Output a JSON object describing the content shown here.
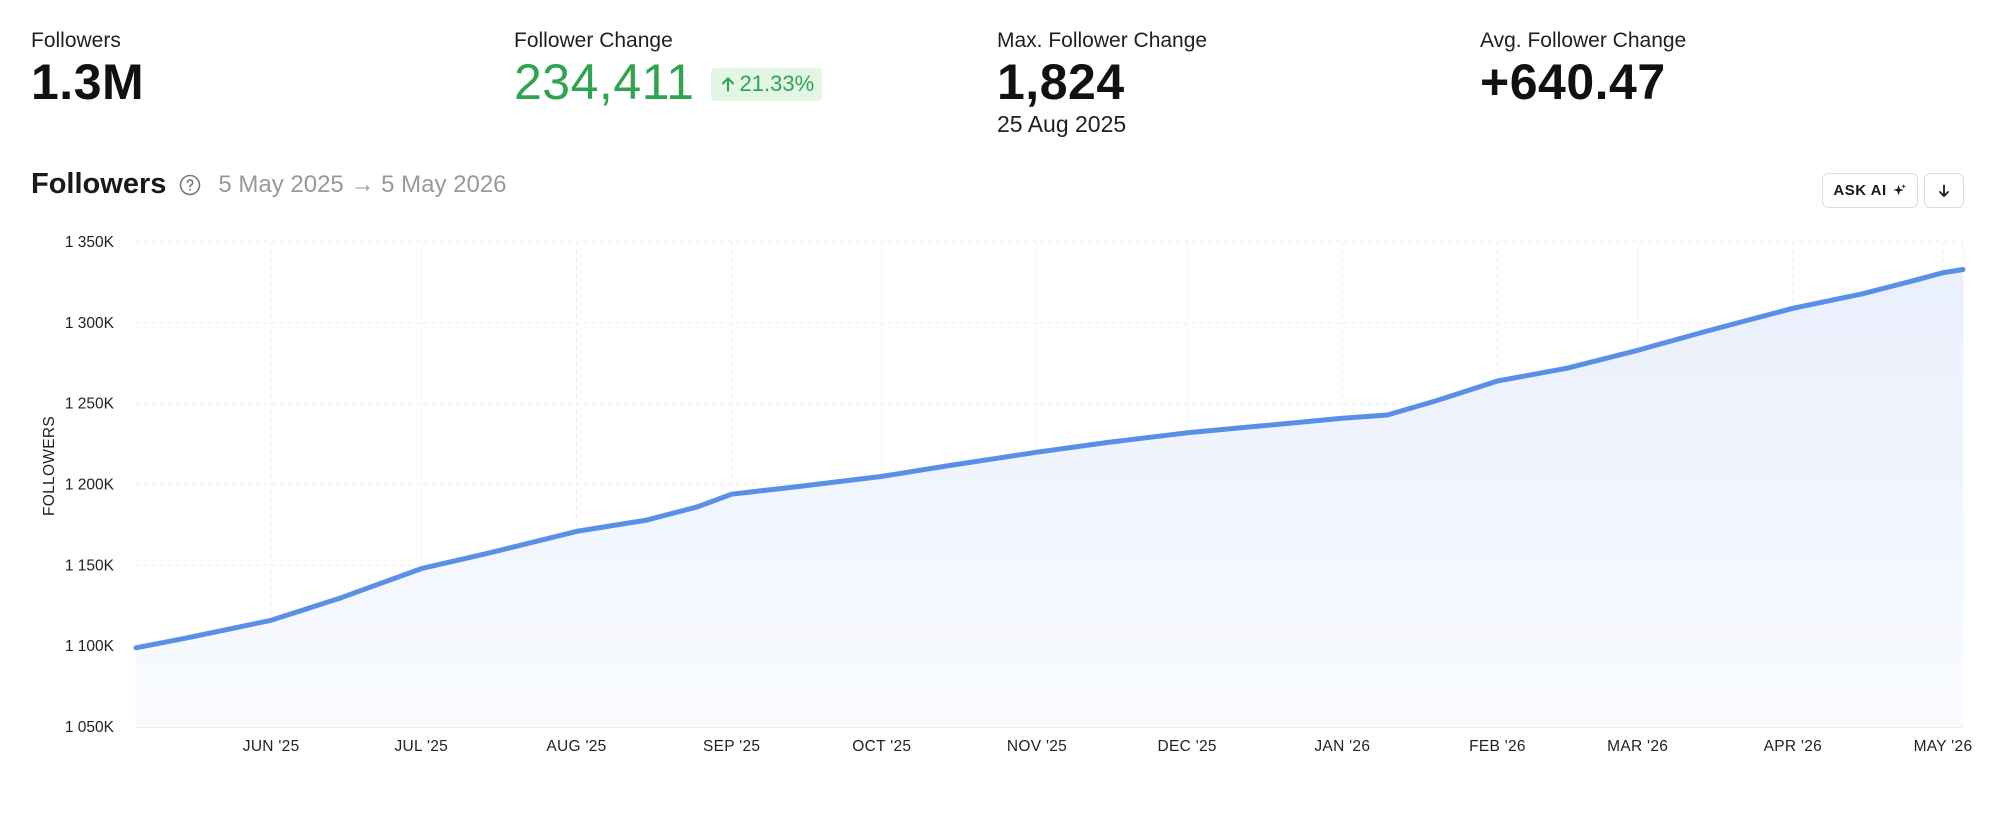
{
  "stats": {
    "followers": {
      "label": "Followers",
      "value": "1.3M"
    },
    "change": {
      "label": "Follower Change",
      "value": "234,411",
      "badge": "21.33%"
    },
    "max_change": {
      "label": "Max. Follower Change",
      "value": "1,824",
      "date": "25 Aug 2025"
    },
    "avg_change": {
      "label": "Avg. Follower Change",
      "value": "+640.47"
    }
  },
  "chart_header": {
    "title": "Followers",
    "date_range": "5 May 2025 → 5 May 2026"
  },
  "buttons": {
    "ask_ai": "ASK AI"
  },
  "icons": [
    "help-circle-icon",
    "arrow-up-icon",
    "sparkle-icon",
    "download-icon"
  ],
  "colors": {
    "line": "#5a8fe6",
    "positive": "#2ea44f",
    "positive_bg": "#e3f6e6"
  },
  "chart_data": {
    "type": "area",
    "ylabel": "FOLLOWERS",
    "xlabel": "",
    "ylim": [
      1050000,
      1350000
    ],
    "y_ticks": [
      1050000,
      1100000,
      1150000,
      1200000,
      1250000,
      1300000,
      1350000
    ],
    "y_tick_labels": [
      "1 050K",
      "1 100K",
      "1 150K",
      "1 200K",
      "1 250K",
      "1 300K",
      "1 350K"
    ],
    "x_range": [
      "2025-05-05",
      "2026-05-05"
    ],
    "x_ticks": [
      {
        "date": "2025-06-01",
        "label": "JUN '25"
      },
      {
        "date": "2025-07-01",
        "label": "JUL '25"
      },
      {
        "date": "2025-08-01",
        "label": "AUG '25"
      },
      {
        "date": "2025-09-01",
        "label": "SEP '25"
      },
      {
        "date": "2025-10-01",
        "label": "OCT '25"
      },
      {
        "date": "2025-11-01",
        "label": "NOV '25"
      },
      {
        "date": "2025-12-01",
        "label": "DEC '25"
      },
      {
        "date": "2026-01-01",
        "label": "JAN '26"
      },
      {
        "date": "2026-02-01",
        "label": "FEB '26"
      },
      {
        "date": "2026-03-01",
        "label": "MAR '26"
      },
      {
        "date": "2026-04-01",
        "label": "APR '26"
      },
      {
        "date": "2026-05-01",
        "label": "MAY '26"
      }
    ],
    "grid": true,
    "series": [
      {
        "points": [
          [
            "2025-05-05",
            1099000
          ],
          [
            "2025-05-15",
            1105000
          ],
          [
            "2025-06-01",
            1116000
          ],
          [
            "2025-06-15",
            1130000
          ],
          [
            "2025-07-01",
            1148000
          ],
          [
            "2025-07-15",
            1158000
          ],
          [
            "2025-08-01",
            1171000
          ],
          [
            "2025-08-15",
            1178000
          ],
          [
            "2025-08-25",
            1186000
          ],
          [
            "2025-09-01",
            1194000
          ],
          [
            "2025-09-15",
            1199000
          ],
          [
            "2025-10-01",
            1205000
          ],
          [
            "2025-10-15",
            1212000
          ],
          [
            "2025-11-01",
            1220000
          ],
          [
            "2025-11-15",
            1226000
          ],
          [
            "2025-12-01",
            1232000
          ],
          [
            "2025-12-15",
            1236000
          ],
          [
            "2026-01-01",
            1241000
          ],
          [
            "2026-01-10",
            1243000
          ],
          [
            "2026-01-20",
            1252000
          ],
          [
            "2026-02-01",
            1264000
          ],
          [
            "2026-02-15",
            1272000
          ],
          [
            "2026-03-01",
            1283000
          ],
          [
            "2026-03-15",
            1295000
          ],
          [
            "2026-04-01",
            1309000
          ],
          [
            "2026-04-15",
            1318000
          ],
          [
            "2026-04-25",
            1326000
          ],
          [
            "2026-05-01",
            1331000
          ],
          [
            "2026-05-05",
            1333000
          ]
        ]
      }
    ]
  }
}
